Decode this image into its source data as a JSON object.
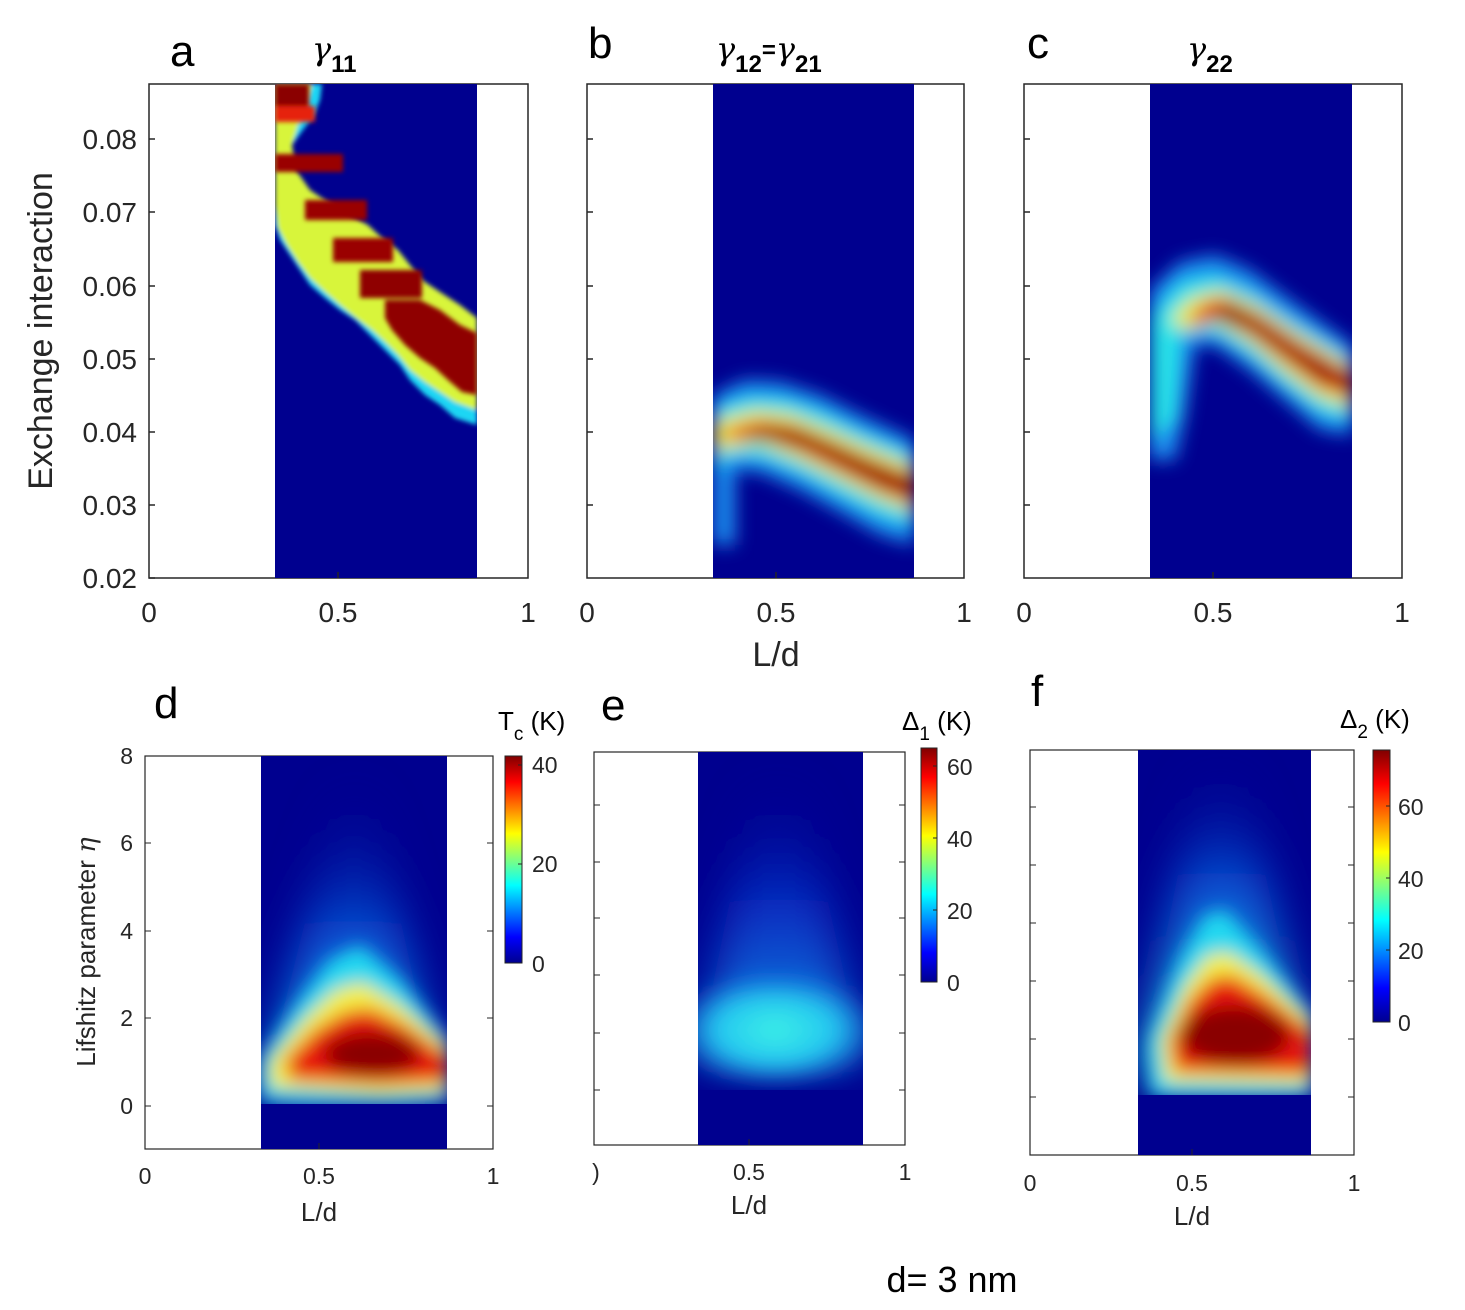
{
  "footer": "d= 3 nm",
  "top_row": {
    "ylabel": "Exchange interaction",
    "xlabel": "L/d",
    "yticks": [
      "0.02",
      "0.03",
      "0.04",
      "0.05",
      "0.06",
      "0.07",
      "0.08"
    ],
    "xticks": [
      "0",
      "0.5",
      "1"
    ]
  },
  "bottom_row": {
    "ylabel": "Lifshitz parameter",
    "ylabel_symbol": "η",
    "xlabel": "L/d",
    "yticks": [
      "0",
      "2",
      "4",
      "6",
      "8"
    ],
    "xticks": [
      "0",
      "0.5",
      "1"
    ]
  },
  "panels": {
    "a": {
      "letter": "a",
      "title_symbol": "γ",
      "title_sub": "11"
    },
    "b": {
      "letter": "b",
      "title_symbol_1": "γ",
      "title_sub_1": "12",
      "title_eq": "=",
      "title_symbol_2": "γ",
      "title_sub_2": "21"
    },
    "c": {
      "letter": "c",
      "title_symbol": "γ",
      "title_sub": "22"
    },
    "d": {
      "letter": "d",
      "cb_symbol": "T",
      "cb_sub": "c",
      "cb_unit": " (K)",
      "cb_ticks": [
        "0",
        "20",
        "40"
      ]
    },
    "e": {
      "letter": "e",
      "cb_symbol": "Δ",
      "cb_sub": "1",
      "cb_unit": " (K)",
      "cb_ticks": [
        "0",
        "20",
        "40",
        "60"
      ],
      "xtick0_partial": ")"
    },
    "f": {
      "letter": "f",
      "cb_symbol": "Δ",
      "cb_sub": "2",
      "cb_unit": " (K)",
      "cb_ticks": [
        "0",
        "20",
        "40",
        "60"
      ]
    }
  },
  "colors": {
    "dark_blue": "#00008f",
    "colormap": "jet"
  },
  "chart_data": [
    {
      "type": "heatmap",
      "panel": "a",
      "title": "γ11",
      "xlabel": "",
      "ylabel": "Exchange interaction",
      "xlim": [
        0,
        1
      ],
      "ylim": [
        0.02,
        0.087
      ],
      "data_x_range": [
        0.333,
        0.867
      ],
      "ridge": {
        "x": [
          0.333,
          0.4,
          0.5,
          0.6,
          0.7,
          0.8,
          0.867
        ],
        "y": [
          0.082,
          0.077,
          0.068,
          0.061,
          0.056,
          0.051,
          0.048
        ]
      },
      "colormap": "jet"
    },
    {
      "type": "heatmap",
      "panel": "b",
      "title": "γ12=γ21",
      "xlabel": "L/d",
      "ylabel": "",
      "xlim": [
        0,
        1
      ],
      "ylim": [
        0.02,
        0.087
      ],
      "data_x_range": [
        0.333,
        0.867
      ],
      "ridge": {
        "x": [
          0.333,
          0.4,
          0.5,
          0.6,
          0.7,
          0.8,
          0.867
        ],
        "y": [
          0.039,
          0.04,
          0.0395,
          0.0375,
          0.0355,
          0.033,
          0.032
        ]
      },
      "colormap": "jet"
    },
    {
      "type": "heatmap",
      "panel": "c",
      "title": "γ22",
      "xlabel": "",
      "ylabel": "",
      "xlim": [
        0,
        1
      ],
      "ylim": [
        0.02,
        0.087
      ],
      "data_x_range": [
        0.333,
        0.867
      ],
      "ridge": {
        "x": [
          0.333,
          0.4,
          0.5,
          0.6,
          0.7,
          0.8,
          0.867
        ],
        "y": [
          0.05,
          0.053,
          0.056,
          0.054,
          0.051,
          0.048,
          0.047
        ]
      },
      "colormap": "jet"
    },
    {
      "type": "heatmap",
      "panel": "d",
      "xlabel": "L/d",
      "ylabel": "Lifshitz parameter η",
      "xlim": [
        0,
        1
      ],
      "ylim": [
        -1,
        8
      ],
      "data_x_range": [
        0.333,
        0.867
      ],
      "peak": {
        "x": 0.65,
        "y": 1.1,
        "value": 42
      },
      "colorbar": {
        "label": "Tc (K)",
        "range": [
          0,
          42
        ],
        "ticks": [
          0,
          20,
          40
        ]
      },
      "colormap": "jet"
    },
    {
      "type": "heatmap",
      "panel": "e",
      "xlabel": "L/d",
      "ylabel": "",
      "xlim": [
        0,
        1
      ],
      "ylim": [
        -1,
        8
      ],
      "data_x_range": [
        0.333,
        0.867
      ],
      "peak": {
        "x": 0.6,
        "y": 1.2,
        "value": 25
      },
      "colorbar": {
        "label": "Δ1 (K)",
        "range": [
          0,
          65
        ],
        "ticks": [
          0,
          20,
          40,
          60
        ]
      },
      "colormap": "jet"
    },
    {
      "type": "heatmap",
      "panel": "f",
      "xlabel": "L/d",
      "ylabel": "",
      "xlim": [
        0,
        1
      ],
      "ylim": [
        -1,
        8
      ],
      "data_x_range": [
        0.333,
        0.867
      ],
      "peak": {
        "x": 0.62,
        "y": 1.2,
        "value": 72
      },
      "colorbar": {
        "label": "Δ2 (K)",
        "range": [
          0,
          75
        ],
        "ticks": [
          0,
          20,
          40,
          60
        ]
      },
      "colormap": "jet"
    }
  ]
}
